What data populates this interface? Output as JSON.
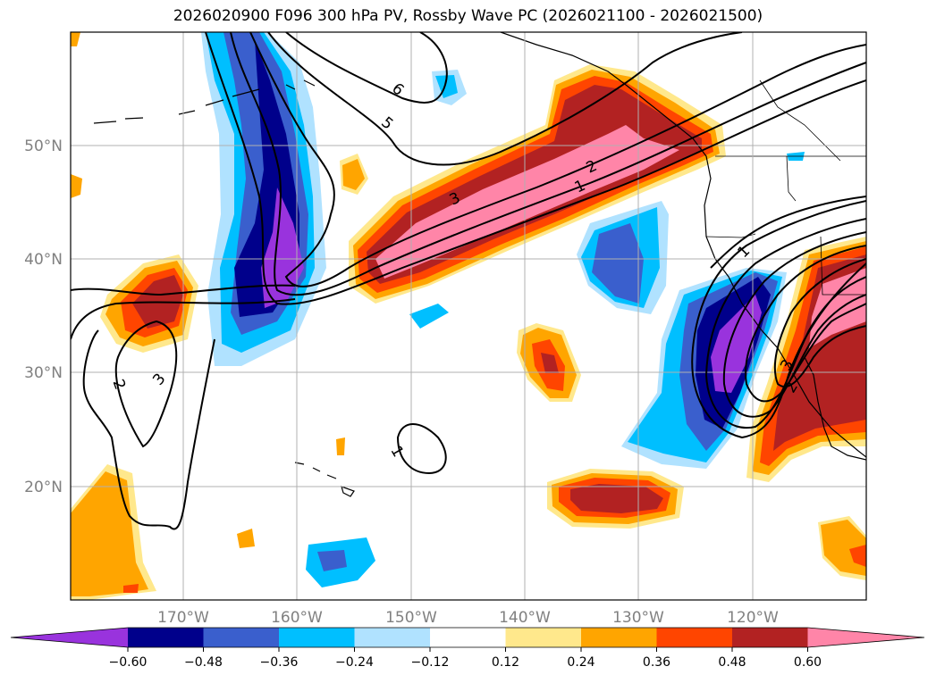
{
  "title": "2026020900 F096 300 hPa PV, Rossby Wave PC (2026021100 - 2026021500)",
  "map": {
    "lat_labels": [
      "50°N",
      "40°N",
      "30°N",
      "20°N"
    ],
    "lon_labels": [
      "170°W",
      "160°W",
      "150°W",
      "140°W",
      "130°W",
      "120°W"
    ]
  },
  "contour_labels": [
    "6",
    "5",
    "3",
    "2",
    "1",
    "2",
    "3",
    "1",
    "1",
    "3",
    "2"
  ],
  "colorbar": {
    "tick_labels": [
      "−0.60",
      "−0.48",
      "−0.36",
      "−0.24",
      "−0.12",
      "0.12",
      "0.24",
      "0.36",
      "0.48",
      "0.60"
    ],
    "colors": [
      "#9933dd",
      "#00008b",
      "#3a5fcd",
      "#00bfff",
      "#b0e2ff",
      "#ffffff",
      "#ffe88c",
      "#ffa500",
      "#ff4500",
      "#b22222",
      "#ff85a8"
    ]
  }
}
